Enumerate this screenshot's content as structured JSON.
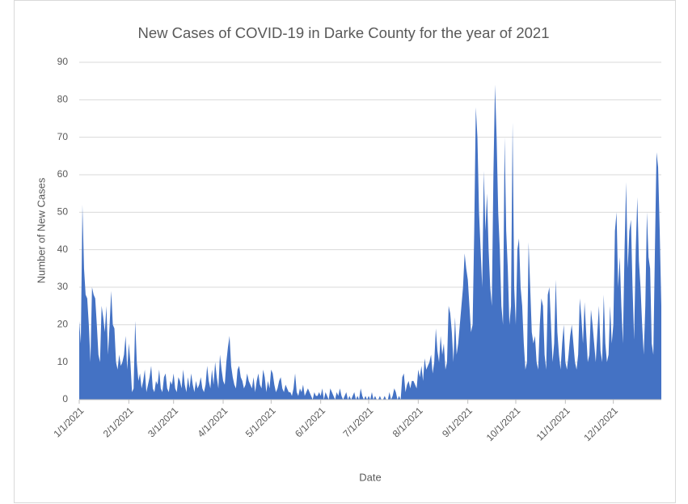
{
  "chart_data": {
    "type": "area",
    "title": "New Cases of COVID-19 in Darke County for the year of 2021",
    "x_label": "Date",
    "y_label": "Number of New Cases",
    "color": "#4472c4",
    "grid": true,
    "ylim": [
      0,
      90
    ],
    "yticks": [
      0,
      10,
      20,
      30,
      40,
      50,
      60,
      70,
      80,
      90
    ],
    "xlim": [
      "1/1/2021",
      "12/31/2021"
    ],
    "xticks": [
      "1/1/2021",
      "2/1/2021",
      "3/1/2021",
      "4/1/2021",
      "5/1/2021",
      "6/1/2021",
      "7/1/2021",
      "8/1/2021",
      "9/1/2021",
      "10/1/2021",
      "11/1/2021",
      "12/1/2021"
    ],
    "x": [
      "1/1/2021",
      "1/2/2021",
      "1/3/2021",
      "1/4/2021",
      "1/5/2021",
      "1/6/2021",
      "1/7/2021",
      "1/8/2021",
      "1/9/2021",
      "1/10/2021",
      "1/11/2021",
      "1/12/2021",
      "1/13/2021",
      "1/14/2021",
      "1/15/2021",
      "1/16/2021",
      "1/17/2021",
      "1/18/2021",
      "1/19/2021",
      "1/20/2021",
      "1/21/2021",
      "1/22/2021",
      "1/23/2021",
      "1/24/2021",
      "1/25/2021",
      "1/26/2021",
      "1/27/2021",
      "1/28/2021",
      "1/29/2021",
      "1/30/2021",
      "1/31/2021",
      "2/1/2021",
      "2/2/2021",
      "2/3/2021",
      "2/4/2021",
      "2/5/2021",
      "2/6/2021",
      "2/7/2021",
      "2/8/2021",
      "2/9/2021",
      "2/10/2021",
      "2/11/2021",
      "2/12/2021",
      "2/13/2021",
      "2/14/2021",
      "2/15/2021",
      "2/16/2021",
      "2/17/2021",
      "2/18/2021",
      "2/19/2021",
      "2/20/2021",
      "2/21/2021",
      "2/22/2021",
      "2/23/2021",
      "2/24/2021",
      "2/25/2021",
      "2/26/2021",
      "2/27/2021",
      "2/28/2021",
      "3/1/2021",
      "3/2/2021",
      "3/3/2021",
      "3/4/2021",
      "3/5/2021",
      "3/6/2021",
      "3/7/2021",
      "3/8/2021",
      "3/9/2021",
      "3/10/2021",
      "3/11/2021",
      "3/12/2021",
      "3/13/2021",
      "3/14/2021",
      "3/15/2021",
      "3/16/2021",
      "3/17/2021",
      "3/18/2021",
      "3/19/2021",
      "3/20/2021",
      "3/21/2021",
      "3/22/2021",
      "3/23/2021",
      "3/24/2021",
      "3/25/2021",
      "3/26/2021",
      "3/27/2021",
      "3/28/2021",
      "3/29/2021",
      "3/30/2021",
      "3/31/2021",
      "4/1/2021",
      "4/2/2021",
      "4/3/2021",
      "4/4/2021",
      "4/5/2021",
      "4/6/2021",
      "4/7/2021",
      "4/8/2021",
      "4/9/2021",
      "4/10/2021",
      "4/11/2021",
      "4/12/2021",
      "4/13/2021",
      "4/14/2021",
      "4/15/2021",
      "4/16/2021",
      "4/17/2021",
      "4/18/2021",
      "4/19/2021",
      "4/20/2021",
      "4/21/2021",
      "4/22/2021",
      "4/23/2021",
      "4/24/2021",
      "4/25/2021",
      "4/26/2021",
      "4/27/2021",
      "4/28/2021",
      "4/29/2021",
      "4/30/2021",
      "5/1/2021",
      "5/2/2021",
      "5/3/2021",
      "5/4/2021",
      "5/5/2021",
      "5/6/2021",
      "5/7/2021",
      "5/8/2021",
      "5/9/2021",
      "5/10/2021",
      "5/11/2021",
      "5/12/2021",
      "5/13/2021",
      "5/14/2021",
      "5/15/2021",
      "5/16/2021",
      "5/17/2021",
      "5/18/2021",
      "5/19/2021",
      "5/20/2021",
      "5/21/2021",
      "5/22/2021",
      "5/23/2021",
      "5/24/2021",
      "5/25/2021",
      "5/26/2021",
      "5/27/2021",
      "5/28/2021",
      "5/29/2021",
      "5/30/2021",
      "5/31/2021",
      "6/1/2021",
      "6/2/2021",
      "6/3/2021",
      "6/4/2021",
      "6/5/2021",
      "6/6/2021",
      "6/7/2021",
      "6/8/2021",
      "6/9/2021",
      "6/10/2021",
      "6/11/2021",
      "6/12/2021",
      "6/13/2021",
      "6/14/2021",
      "6/15/2021",
      "6/16/2021",
      "6/17/2021",
      "6/18/2021",
      "6/19/2021",
      "6/20/2021",
      "6/21/2021",
      "6/22/2021",
      "6/23/2021",
      "6/24/2021",
      "6/25/2021",
      "6/26/2021",
      "6/27/2021",
      "6/28/2021",
      "6/29/2021",
      "6/30/2021",
      "7/1/2021",
      "7/2/2021",
      "7/3/2021",
      "7/4/2021",
      "7/5/2021",
      "7/6/2021",
      "7/7/2021",
      "7/8/2021",
      "7/9/2021",
      "7/10/2021",
      "7/11/2021",
      "7/12/2021",
      "7/13/2021",
      "7/14/2021",
      "7/15/2021",
      "7/16/2021",
      "7/17/2021",
      "7/18/2021",
      "7/19/2021",
      "7/20/2021",
      "7/21/2021",
      "7/22/2021",
      "7/23/2021",
      "7/24/2021",
      "7/25/2021",
      "7/26/2021",
      "7/27/2021",
      "7/28/2021",
      "7/29/2021",
      "7/30/2021",
      "7/31/2021",
      "8/1/2021",
      "8/2/2021",
      "8/3/2021",
      "8/4/2021",
      "8/5/2021",
      "8/6/2021",
      "8/7/2021",
      "8/8/2021",
      "8/9/2021",
      "8/10/2021",
      "8/11/2021",
      "8/12/2021",
      "8/13/2021",
      "8/14/2021",
      "8/15/2021",
      "8/16/2021",
      "8/17/2021",
      "8/18/2021",
      "8/19/2021",
      "8/20/2021",
      "8/21/2021",
      "8/22/2021",
      "8/23/2021",
      "8/24/2021",
      "8/25/2021",
      "8/26/2021",
      "8/27/2021",
      "8/28/2021",
      "8/29/2021",
      "8/30/2021",
      "8/31/2021",
      "9/1/2021",
      "9/2/2021",
      "9/3/2021",
      "9/4/2021",
      "9/5/2021",
      "9/6/2021",
      "9/7/2021",
      "9/8/2021",
      "9/9/2021",
      "9/10/2021",
      "9/11/2021",
      "9/12/2021",
      "9/13/2021",
      "9/14/2021",
      "9/15/2021",
      "9/16/2021",
      "9/17/2021",
      "9/18/2021",
      "9/19/2021",
      "9/20/2021",
      "9/21/2021",
      "9/22/2021",
      "9/23/2021",
      "9/24/2021",
      "9/25/2021",
      "9/26/2021",
      "9/27/2021",
      "9/28/2021",
      "9/29/2021",
      "9/30/2021",
      "10/1/2021",
      "10/2/2021",
      "10/3/2021",
      "10/4/2021",
      "10/5/2021",
      "10/6/2021",
      "10/7/2021",
      "10/8/2021",
      "10/9/2021",
      "10/10/2021",
      "10/11/2021",
      "10/12/2021",
      "10/13/2021",
      "10/14/2021",
      "10/15/2021",
      "10/16/2021",
      "10/17/2021",
      "10/18/2021",
      "10/19/2021",
      "10/20/2021",
      "10/21/2021",
      "10/22/2021",
      "10/23/2021",
      "10/24/2021",
      "10/25/2021",
      "10/26/2021",
      "10/27/2021",
      "10/28/2021",
      "10/29/2021",
      "10/30/2021",
      "10/31/2021",
      "11/1/2021",
      "11/2/2021",
      "11/3/2021",
      "11/4/2021",
      "11/5/2021",
      "11/6/2021",
      "11/7/2021",
      "11/8/2021",
      "11/9/2021",
      "11/10/2021",
      "11/11/2021",
      "11/12/2021",
      "11/13/2021",
      "11/14/2021",
      "11/15/2021",
      "11/16/2021",
      "11/17/2021",
      "11/18/2021",
      "11/19/2021",
      "11/20/2021",
      "11/21/2021",
      "11/22/2021",
      "11/23/2021",
      "11/24/2021",
      "11/25/2021",
      "11/26/2021",
      "11/27/2021",
      "11/28/2021",
      "11/29/2021",
      "11/30/2021",
      "12/1/2021",
      "12/2/2021",
      "12/3/2021",
      "12/4/2021",
      "12/5/2021",
      "12/6/2021",
      "12/7/2021",
      "12/8/2021",
      "12/9/2021",
      "12/10/2021",
      "12/11/2021",
      "12/12/2021",
      "12/13/2021",
      "12/14/2021",
      "12/15/2021",
      "12/16/2021",
      "12/17/2021",
      "12/18/2021",
      "12/19/2021",
      "12/20/2021",
      "12/21/2021",
      "12/22/2021",
      "12/23/2021",
      "12/24/2021",
      "12/25/2021",
      "12/26/2021",
      "12/27/2021",
      "12/28/2021",
      "12/29/2021",
      "12/30/2021",
      "12/31/2021"
    ],
    "values": [
      21,
      15,
      52,
      35,
      28,
      27,
      20,
      10,
      30,
      28,
      27,
      20,
      12,
      10,
      25,
      22,
      18,
      25,
      12,
      20,
      29,
      20,
      19,
      10,
      8,
      12,
      9,
      10,
      12,
      17,
      8,
      15,
      10,
      2,
      3,
      21,
      10,
      5,
      7,
      3,
      5,
      8,
      2,
      4,
      6,
      9,
      3,
      2,
      5,
      4,
      8,
      3,
      2,
      6,
      7,
      3,
      2,
      5,
      4,
      7,
      3,
      2,
      6,
      5,
      3,
      8,
      4,
      2,
      6,
      3,
      7,
      4,
      2,
      5,
      3,
      4,
      6,
      3,
      2,
      4,
      9,
      5,
      3,
      8,
      4,
      10,
      6,
      3,
      12,
      8,
      5,
      4,
      10,
      14,
      17,
      9,
      6,
      4,
      3,
      8,
      9,
      6,
      5,
      3,
      4,
      7,
      5,
      4,
      3,
      6,
      2,
      5,
      7,
      4,
      3,
      8,
      6,
      2,
      5,
      3,
      8,
      7,
      4,
      2,
      3,
      5,
      6,
      3,
      2,
      4,
      3,
      2,
      2,
      1,
      3,
      7,
      2,
      1,
      3,
      2,
      4,
      1,
      2,
      3,
      2,
      1,
      0,
      2,
      1,
      1,
      2,
      1,
      3,
      0,
      2,
      1,
      0,
      3,
      2,
      1,
      0,
      2,
      1,
      3,
      1,
      0,
      1,
      2,
      0,
      1,
      0,
      1,
      2,
      0,
      1,
      0,
      3,
      1,
      0,
      1,
      0,
      1,
      0,
      2,
      0,
      1,
      0,
      0,
      1,
      0,
      0,
      1,
      0,
      0,
      2,
      0,
      1,
      3,
      2,
      0,
      1,
      0,
      6,
      7,
      2,
      4,
      5,
      3,
      5,
      5,
      4,
      3,
      8,
      6,
      9,
      5,
      11,
      8,
      9,
      10,
      12,
      7,
      10,
      19,
      13,
      10,
      17,
      12,
      15,
      8,
      10,
      25,
      23,
      18,
      10,
      22,
      12,
      15,
      20,
      25,
      30,
      39,
      35,
      32,
      25,
      18,
      20,
      45,
      78,
      70,
      50,
      40,
      30,
      61,
      45,
      55,
      40,
      30,
      25,
      60,
      84,
      70,
      50,
      40,
      25,
      20,
      70,
      45,
      35,
      20,
      25,
      74,
      30,
      20,
      40,
      43,
      30,
      25,
      15,
      8,
      10,
      42,
      30,
      18,
      15,
      17,
      10,
      8,
      20,
      27,
      25,
      12,
      8,
      28,
      30,
      20,
      10,
      15,
      32,
      18,
      12,
      8,
      15,
      20,
      10,
      8,
      12,
      17,
      20,
      15,
      10,
      8,
      12,
      27,
      22,
      15,
      26,
      18,
      10,
      12,
      24,
      20,
      15,
      10,
      18,
      25,
      13,
      10,
      28,
      15,
      10,
      12,
      25,
      15,
      20,
      45,
      50,
      30,
      38,
      25,
      15,
      40,
      58,
      35,
      45,
      48,
      30,
      16,
      40,
      54,
      37,
      30,
      20,
      12,
      25,
      50,
      38,
      35,
      15,
      12,
      40,
      66,
      62,
      45,
      25
    ]
  }
}
